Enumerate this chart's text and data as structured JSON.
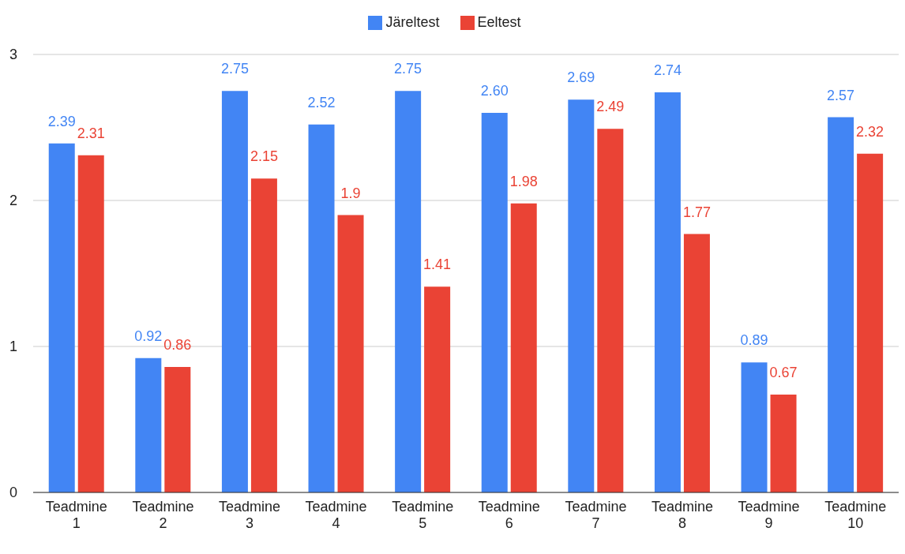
{
  "chart_data": {
    "type": "bar",
    "categories": [
      "Teadmine 1",
      "Teadmine 2",
      "Teadmine 3",
      "Teadmine 4",
      "Teadmine 5",
      "Teadmine 6",
      "Teadmine 7",
      "Teadmine 8",
      "Teadmine 9",
      "Teadmine 10"
    ],
    "series": [
      {
        "name": "Järeltest",
        "color": "#4285f4",
        "values": [
          2.39,
          0.92,
          2.75,
          2.52,
          2.75,
          2.6,
          2.69,
          2.74,
          0.89,
          2.57
        ],
        "value_labels": [
          "2.39",
          "0.92",
          "2.75",
          "2.52",
          "2.75",
          "2.60",
          "2.69",
          "2.74",
          "0.89",
          "2.57"
        ]
      },
      {
        "name": "Eeltest",
        "color": "#ea4335",
        "values": [
          2.31,
          0.86,
          2.15,
          1.9,
          1.41,
          1.98,
          2.49,
          1.77,
          0.67,
          2.32
        ],
        "value_labels": [
          "2.31",
          "0.86",
          "2.15",
          "1.9",
          "1.41",
          "1.98",
          "2.49",
          "1.77",
          "0.67",
          "2.32"
        ]
      }
    ],
    "ylim": [
      0,
      3
    ],
    "yticks": [
      0,
      1,
      2,
      3
    ],
    "grid": "y",
    "legend": "top"
  }
}
